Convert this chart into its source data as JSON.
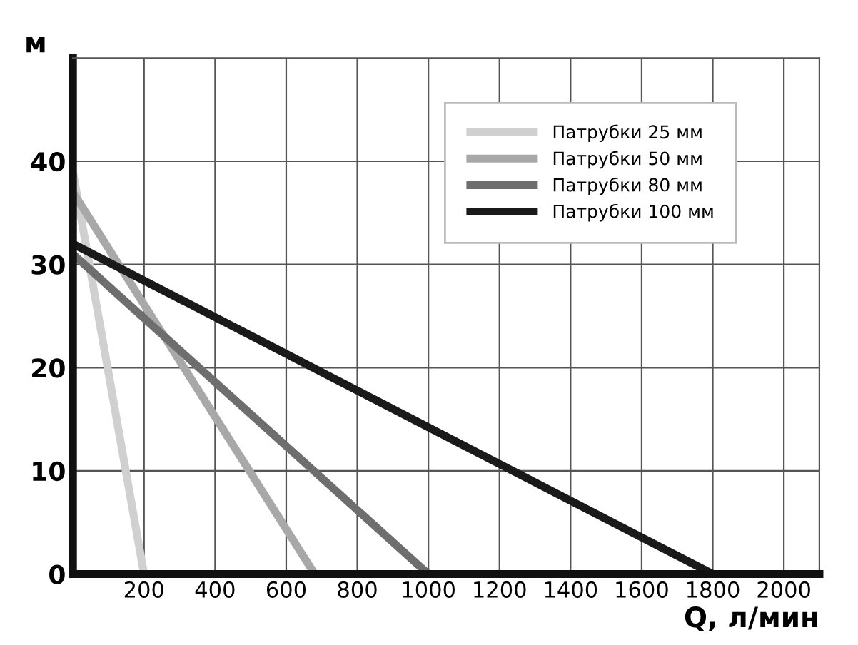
{
  "chart_data": {
    "type": "line",
    "xlabel": "Q, л/мин",
    "ylabel": "м",
    "series": [
      {
        "name": "Патрубки 25 мм",
        "color": "#d0d0d0",
        "x": [
          0,
          200
        ],
        "values": [
          39,
          0
        ]
      },
      {
        "name": "Патрубки 50 мм",
        "color": "#a8a8a8",
        "x": [
          0,
          680
        ],
        "values": [
          37,
          0
        ]
      },
      {
        "name": "Патрубки 80 мм",
        "color": "#6e6e6e",
        "x": [
          0,
          1000
        ],
        "values": [
          31,
          0
        ]
      },
      {
        "name": "Патрубки 100 мм",
        "color": "#1a1a1a",
        "x": [
          0,
          1800
        ],
        "values": [
          32,
          0
        ]
      }
    ],
    "xlim": [
      0,
      2100
    ],
    "ylim": [
      0,
      50
    ],
    "xticks": [
      200,
      400,
      600,
      800,
      1000,
      1200,
      1400,
      1600,
      1800,
      2000
    ],
    "yticks": [
      0,
      10,
      20,
      30,
      40
    ],
    "grid": true,
    "legend": "top right",
    "marker": "none",
    "line_style": "solid"
  }
}
